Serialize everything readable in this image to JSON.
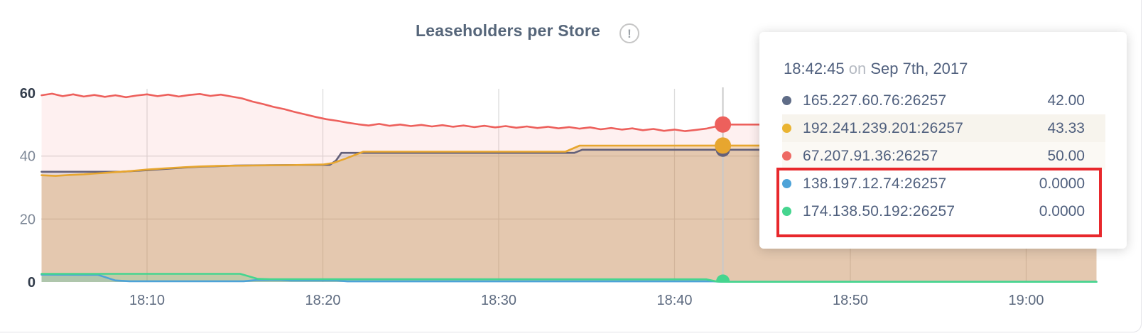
{
  "title": "Leaseholders per Store",
  "info_icon": "exclamation-circle",
  "tooltip": {
    "time": "18:42:45",
    "on_word": "on",
    "date": "Sep 7th, 2017",
    "rows": [
      {
        "label": "165.227.60.76:26257",
        "value": "42.00",
        "color": "#5f6c87",
        "bg": ""
      },
      {
        "label": "192.241.239.201:26257",
        "value": "43.33",
        "color": "#eab431",
        "bg": "#f7f4ed"
      },
      {
        "label": "67.207.91.36:26257",
        "value": "50.00",
        "color": "#ee6a64",
        "bg": "#fbf9f4"
      },
      {
        "label": "138.197.12.74:26257",
        "value": "0.0000",
        "color": "#4da3d8",
        "bg": ""
      },
      {
        "label": "174.138.50.192:26257",
        "value": "0.0000",
        "color": "#45d58f",
        "bg": ""
      }
    ]
  },
  "annotation": {
    "type": "red-box",
    "highlights": [
      "138.197.12.74:26257",
      "174.138.50.192:26257"
    ],
    "color": "#e8282c"
  },
  "chart_data": {
    "type": "area",
    "title": "Leaseholders per Store",
    "x_range": [
      "18:04",
      "19:04"
    ],
    "ylim": [
      0,
      60
    ],
    "grid": true,
    "y_grid": [
      20,
      40
    ],
    "x_ticks": [
      {
        "t": 10,
        "label": "18:10"
      },
      {
        "t": 20,
        "label": "18:20"
      },
      {
        "t": 30,
        "label": "18:30"
      },
      {
        "t": 40,
        "label": "18:40"
      },
      {
        "t": 50,
        "label": "18:50"
      },
      {
        "t": 60,
        "label": "19:00"
      }
    ],
    "y_ticks": [
      {
        "v": 0,
        "label": "0",
        "strong": true
      },
      {
        "v": 20,
        "label": "20",
        "strong": false
      },
      {
        "v": 40,
        "label": "40",
        "strong": false
      },
      {
        "v": 60,
        "label": "60",
        "strong": true
      }
    ],
    "series": [
      {
        "id": "slate",
        "name": "165.227.60.76:26257",
        "color": "#63607a",
        "fill": "rgba(95,98,125,0.16)",
        "hover_value": 42.0,
        "points": [
          [
            4,
            35
          ],
          [
            8.5,
            35
          ],
          [
            10,
            35.5
          ],
          [
            11,
            35.9
          ],
          [
            12,
            36.3
          ],
          [
            13,
            36.6
          ],
          [
            14,
            36.8
          ],
          [
            15,
            37
          ],
          [
            17,
            37.1
          ],
          [
            20.4,
            37.2
          ],
          [
            20.75,
            38.6
          ],
          [
            21.05,
            41
          ],
          [
            34.3,
            41
          ],
          [
            34.75,
            42
          ],
          [
            64,
            42
          ]
        ]
      },
      {
        "id": "yellow",
        "name": "192.241.239.201:26257",
        "color": "#e7a62f",
        "fill": "rgba(224,160,40,0.26)",
        "hover_value": 43.33,
        "points": [
          [
            4,
            33.9
          ],
          [
            4.8,
            33.7
          ],
          [
            5.6,
            34
          ],
          [
            6.4,
            34.2
          ],
          [
            7.2,
            34.5
          ],
          [
            8,
            34.8
          ],
          [
            9,
            35.2
          ],
          [
            10,
            35.7
          ],
          [
            11,
            36.1
          ],
          [
            12,
            36.4
          ],
          [
            13,
            36.7
          ],
          [
            14,
            36.85
          ],
          [
            16,
            37
          ],
          [
            18,
            37.1
          ],
          [
            20,
            37.3
          ],
          [
            20.6,
            37.8
          ],
          [
            21.3,
            39.2
          ],
          [
            22.3,
            41.4
          ],
          [
            33.8,
            41.4
          ],
          [
            34.6,
            43.3
          ],
          [
            64,
            43.33
          ]
        ]
      },
      {
        "id": "red",
        "name": "67.207.91.36:26257",
        "color": "#ed605c",
        "fill": "rgba(241,105,103,0.10)",
        "hover_value": 50.0,
        "points": [
          [
            4,
            59.3
          ],
          [
            4.6,
            59.8
          ],
          [
            5.2,
            59
          ],
          [
            5.8,
            59.6
          ],
          [
            6.4,
            58.9
          ],
          [
            7,
            59.4
          ],
          [
            7.6,
            58.8
          ],
          [
            8.2,
            59.3
          ],
          [
            8.8,
            58.7
          ],
          [
            9.4,
            59.2
          ],
          [
            10,
            59.6
          ],
          [
            10.6,
            59
          ],
          [
            11.2,
            59.5
          ],
          [
            11.8,
            58.9
          ],
          [
            12.4,
            59.4
          ],
          [
            13,
            59.7
          ],
          [
            13.6,
            59.1
          ],
          [
            14.2,
            59.5
          ],
          [
            14.8,
            58.9
          ],
          [
            15.4,
            58.3
          ],
          [
            16,
            57.3
          ],
          [
            16.6,
            56.5
          ],
          [
            17.2,
            55.6
          ],
          [
            17.8,
            54.9
          ],
          [
            18.4,
            54
          ],
          [
            19,
            53.2
          ],
          [
            19.6,
            52.4
          ],
          [
            20.2,
            51.7
          ],
          [
            20.8,
            51.2
          ],
          [
            21.4,
            50.6
          ],
          [
            22,
            50.1
          ],
          [
            22.6,
            49.7
          ],
          [
            23.2,
            50.2
          ],
          [
            23.8,
            49.6
          ],
          [
            24.4,
            50
          ],
          [
            25,
            49.5
          ],
          [
            25.6,
            49.9
          ],
          [
            26.2,
            49.4
          ],
          [
            26.8,
            49.8
          ],
          [
            27.4,
            49.3
          ],
          [
            28,
            49.7
          ],
          [
            28.6,
            49.2
          ],
          [
            29.2,
            49.6
          ],
          [
            29.8,
            49.1
          ],
          [
            30.4,
            49.5
          ],
          [
            31,
            49
          ],
          [
            31.6,
            49.4
          ],
          [
            32.2,
            48.9
          ],
          [
            32.8,
            49.3
          ],
          [
            33.4,
            48.8
          ],
          [
            34,
            49.2
          ],
          [
            34.6,
            48.7
          ],
          [
            35.2,
            49.1
          ],
          [
            35.8,
            48.5
          ],
          [
            36.4,
            48.9
          ],
          [
            37,
            48.4
          ],
          [
            37.6,
            48.8
          ],
          [
            38.2,
            48.2
          ],
          [
            38.8,
            48.6
          ],
          [
            39.4,
            48
          ],
          [
            40,
            48.4
          ],
          [
            40.6,
            47.9
          ],
          [
            41.2,
            48.3
          ],
          [
            41.8,
            48.7
          ],
          [
            42.3,
            49.3
          ],
          [
            42.75,
            50
          ],
          [
            64,
            50
          ]
        ]
      },
      {
        "id": "blue",
        "name": "138.197.12.74:26257",
        "color": "#4da3d8",
        "fill": "rgba(77,163,216,0.15)",
        "hover_value": 0.0,
        "points": [
          [
            4,
            2.35
          ],
          [
            7.2,
            2.3
          ],
          [
            8.2,
            0.5
          ],
          [
            9,
            0.25
          ],
          [
            15.5,
            0.25
          ],
          [
            16.2,
            0.6
          ],
          [
            17.5,
            0.65
          ],
          [
            18.2,
            0.45
          ],
          [
            20.8,
            0.45
          ],
          [
            21.4,
            0.2
          ],
          [
            42.2,
            0.2
          ],
          [
            42.75,
            0.07
          ],
          [
            64,
            0.07
          ]
        ]
      },
      {
        "id": "green",
        "name": "174.138.50.192:26257",
        "color": "#45d58f",
        "fill": "rgba(69,213,143,0.22)",
        "hover_value": 0.0,
        "points": [
          [
            4,
            2.6
          ],
          [
            15.3,
            2.6
          ],
          [
            16.3,
            1
          ],
          [
            17,
            0.9
          ],
          [
            41.8,
            0.85
          ],
          [
            42.4,
            0.15
          ],
          [
            42.75,
            0.07
          ],
          [
            64,
            0.07
          ]
        ]
      }
    ],
    "hover": {
      "t": 42.75,
      "time": "18:42:45",
      "line_color": "#c9c9c9",
      "dots": [
        {
          "series": 0,
          "v": 42,
          "r": 10
        },
        {
          "series": 1,
          "v": 43.33,
          "r": 11.5
        },
        {
          "series": 2,
          "v": 50,
          "r": 11.5
        },
        {
          "series": 3,
          "v": 0.25,
          "r": 8
        },
        {
          "series": 4,
          "v": 0.25,
          "r": 9.5
        }
      ]
    }
  }
}
